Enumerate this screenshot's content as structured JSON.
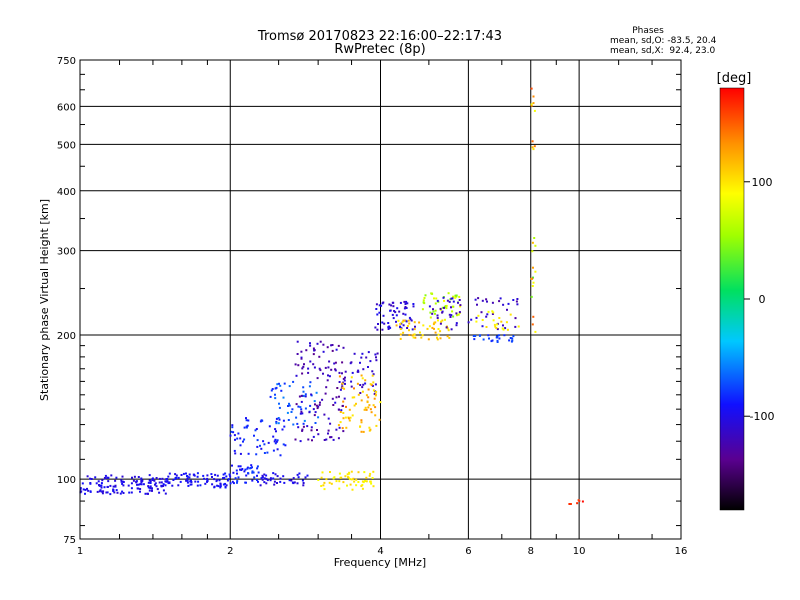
{
  "chart_data": {
    "type": "scatter",
    "title": "Tromsø 20170823 22:16:00–22:17:43",
    "subtitle": "RwPretec (8p)",
    "xlabel": "Frequency [MHz]",
    "ylabel": "Stationary phase Virtual Height [km]",
    "xscale": "log",
    "yscale": "log",
    "xlim": [
      1,
      16
    ],
    "ylim": [
      75,
      750
    ],
    "x_ticks": [
      {
        "v": 1,
        "label": "1"
      },
      {
        "v": 2,
        "label": "2"
      },
      {
        "v": 4,
        "label": "4"
      },
      {
        "v": 6,
        "label": "6"
      },
      {
        "v": 8,
        "label": "8"
      },
      {
        "v": 10,
        "label": "10"
      },
      {
        "v": 16,
        "label": "16"
      }
    ],
    "y_ticks": [
      {
        "v": 75,
        "label": "75"
      },
      {
        "v": 100,
        "label": "100"
      },
      {
        "v": 200,
        "label": "200"
      },
      {
        "v": 300,
        "label": "300"
      },
      {
        "v": 400,
        "label": "400"
      },
      {
        "v": 500,
        "label": "500"
      },
      {
        "v": 600,
        "label": "600"
      },
      {
        "v": 750,
        "label": "750"
      }
    ],
    "grid": true,
    "stats": {
      "heading": "Phases",
      "line_o": "mean, sd,O: -83.5, 20.4",
      "line_x": "mean, sd,X:  92.4, 23.0"
    },
    "colorbar": {
      "label": "[deg]",
      "range": [
        -180,
        180
      ],
      "ticks": [
        {
          "v": 100,
          "label": "100"
        },
        {
          "v": 0,
          "label": "0"
        },
        {
          "v": -100,
          "label": "-100"
        }
      ]
    },
    "clusters": [
      {
        "x": [
          1.0,
          1.5
        ],
        "y": [
          93,
          102
        ],
        "phase": [
          -110,
          -90
        ],
        "n": 140
      },
      {
        "x": [
          1.5,
          2.0
        ],
        "y": [
          96,
          103
        ],
        "phase": [
          -105,
          -85
        ],
        "n": 80
      },
      {
        "x": [
          2.0,
          2.3
        ],
        "y": [
          98,
          108
        ],
        "phase": [
          -95,
          -75
        ],
        "n": 40
      },
      {
        "x": [
          2.3,
          2.9
        ],
        "y": [
          97,
          103
        ],
        "phase": [
          -110,
          -90
        ],
        "n": 40
      },
      {
        "x": [
          3.0,
          3.9
        ],
        "y": [
          95,
          104
        ],
        "phase": [
          85,
          110
        ],
        "n": 55
      },
      {
        "x": [
          2.0,
          2.6
        ],
        "y": [
          112,
          135
        ],
        "phase": [
          -100,
          -75
        ],
        "n": 60
      },
      {
        "x": [
          2.4,
          3.0
        ],
        "y": [
          130,
          160
        ],
        "phase": [
          -85,
          -55
        ],
        "n": 50
      },
      {
        "x": [
          2.7,
          3.4
        ],
        "y": [
          120,
          195
        ],
        "phase": [
          -140,
          -100
        ],
        "n": 120
      },
      {
        "x": [
          3.3,
          4.0
        ],
        "y": [
          150,
          185
        ],
        "phase": [
          -125,
          -100
        ],
        "n": 40
      },
      {
        "x": [
          3.3,
          4.0
        ],
        "y": [
          125,
          165
        ],
        "phase": [
          95,
          140
        ],
        "n": 70
      },
      {
        "x": [
          3.9,
          4.7
        ],
        "y": [
          205,
          235
        ],
        "phase": [
          -120,
          -95
        ],
        "n": 60
      },
      {
        "x": [
          4.3,
          5.5
        ],
        "y": [
          195,
          215
        ],
        "phase": [
          90,
          125
        ],
        "n": 50
      },
      {
        "x": [
          4.8,
          5.8
        ],
        "y": [
          215,
          245
        ],
        "phase": [
          40,
          90
        ],
        "n": 45
      },
      {
        "x": [
          5.0,
          5.8
        ],
        "y": [
          205,
          240
        ],
        "phase": [
          -130,
          -100
        ],
        "n": 30
      },
      {
        "x": [
          6.0,
          7.6
        ],
        "y": [
          205,
          240
        ],
        "phase": [
          -130,
          -100
        ],
        "n": 30
      },
      {
        "x": [
          6.0,
          7.4
        ],
        "y": [
          193,
          200
        ],
        "phase": [
          -85,
          -70
        ],
        "n": 25
      },
      {
        "x": [
          6.2,
          7.6
        ],
        "y": [
          205,
          225
        ],
        "phase": [
          85,
          110
        ],
        "n": 20
      },
      {
        "x": [
          8.0,
          8.2
        ],
        "y": [
          200,
          320
        ],
        "phase": [
          30,
          150
        ],
        "n": 15
      },
      {
        "x": [
          8.0,
          8.2
        ],
        "y": [
          480,
          680
        ],
        "phase": [
          80,
          170
        ],
        "n": 10
      },
      {
        "x": [
          9.3,
          10.2
        ],
        "y": [
          88,
          92
        ],
        "phase": [
          160,
          178
        ],
        "n": 6
      }
    ]
  }
}
